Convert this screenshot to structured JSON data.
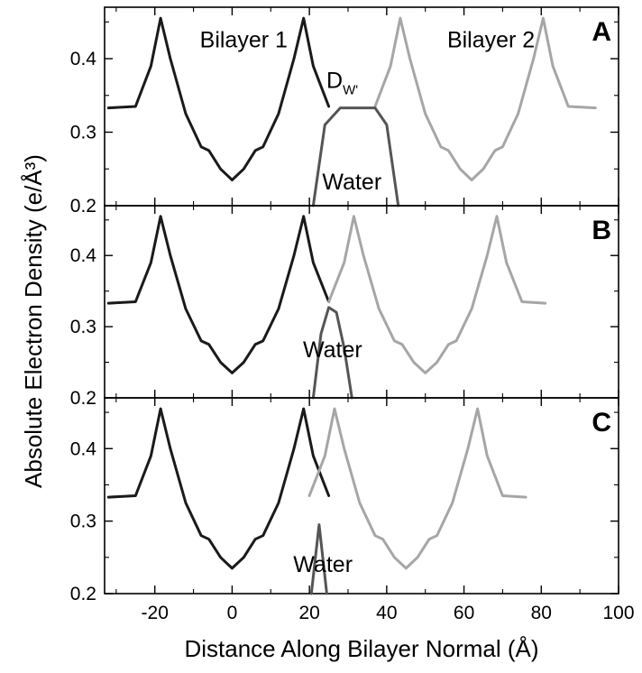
{
  "chart_data": {
    "type": "line",
    "xlabel": "Distance Along Bilayer Normal (Å)",
    "ylabel": "Absolute Electron Density (e/Å³)",
    "xlim": [
      -33,
      100
    ],
    "ylim": [
      0.2,
      0.47
    ],
    "x_ticks": [
      "-20",
      "0",
      "20",
      "40",
      "60",
      "80",
      "100"
    ],
    "y_ticks": [
      "0.2",
      "0.3",
      "0.4"
    ],
    "colors": {
      "bilayer1": "#1a1a1a",
      "bilayer2": "#a6a6a6",
      "water": "#555555"
    },
    "panels": [
      {
        "letter": "A",
        "annotations": [
          {
            "text": "Bilayer 1",
            "x": 3,
            "y": 0.425
          },
          {
            "text": "Bilayer 2",
            "x": 67,
            "y": 0.425
          },
          {
            "text": "D",
            "sub": "W'",
            "x": 28.5,
            "y": 0.37
          },
          {
            "text": "Water",
            "x": 31,
            "y": 0.232
          }
        ],
        "series": [
          {
            "role": "bilayer1",
            "x": [
              -32,
              -25,
              -21,
              -18.5,
              -16,
              -12,
              -8,
              -6,
              -3,
              0,
              3,
              6,
              8,
              12,
              16,
              18.5,
              21,
              25
            ],
            "y": [
              0.333,
              0.335,
              0.39,
              0.455,
              0.4,
              0.325,
              0.28,
              0.275,
              0.25,
              0.235,
              0.25,
              0.275,
              0.28,
              0.325,
              0.4,
              0.455,
              0.39,
              0.335
            ]
          },
          {
            "role": "bilayer2",
            "x": [
              37,
              41,
              43.5,
              46,
              50,
              54,
              56,
              59,
              62,
              65,
              68,
              70,
              74,
              78,
              80.5,
              83,
              87,
              94
            ],
            "y": [
              0.335,
              0.39,
              0.455,
              0.4,
              0.325,
              0.28,
              0.275,
              0.25,
              0.235,
              0.25,
              0.275,
              0.28,
              0.325,
              0.4,
              0.455,
              0.39,
              0.335,
              0.333
            ]
          },
          {
            "role": "water",
            "x": [
              21,
              24,
              28,
              31,
              34,
              37,
              40,
              43
            ],
            "y": [
              0.2,
              0.31,
              0.333,
              0.333,
              0.333,
              0.333,
              0.31,
              0.2
            ]
          }
        ]
      },
      {
        "letter": "B",
        "annotations": [
          {
            "text": "Water",
            "x": 26,
            "y": 0.267
          }
        ],
        "series": [
          {
            "role": "bilayer1",
            "x": [
              -32,
              -25,
              -21,
              -18.5,
              -16,
              -12,
              -8,
              -6,
              -3,
              0,
              3,
              6,
              8,
              12,
              16,
              18.5,
              21,
              25
            ],
            "y": [
              0.333,
              0.335,
              0.39,
              0.455,
              0.4,
              0.325,
              0.28,
              0.275,
              0.25,
              0.235,
              0.25,
              0.275,
              0.28,
              0.325,
              0.4,
              0.455,
              0.39,
              0.335
            ]
          },
          {
            "role": "bilayer2",
            "x": [
              25,
              29,
              31.5,
              34,
              38,
              42,
              44,
              47,
              50,
              53,
              56,
              58,
              62,
              66,
              68.5,
              71,
              75,
              81
            ],
            "y": [
              0.335,
              0.39,
              0.455,
              0.4,
              0.325,
              0.28,
              0.275,
              0.25,
              0.235,
              0.25,
              0.275,
              0.28,
              0.325,
              0.4,
              0.455,
              0.39,
              0.335,
              0.333
            ]
          },
          {
            "role": "water",
            "x": [
              21,
              23,
              25,
              27,
              29,
              31
            ],
            "y": [
              0.2,
              0.29,
              0.327,
              0.32,
              0.27,
              0.2
            ]
          }
        ]
      },
      {
        "letter": "C",
        "annotations": [
          {
            "text": "Water",
            "x": 23.5,
            "y": 0.24
          }
        ],
        "series": [
          {
            "role": "bilayer1",
            "x": [
              -32,
              -25,
              -21,
              -18.5,
              -16,
              -12,
              -8,
              -6,
              -3,
              0,
              3,
              6,
              8,
              12,
              16,
              18.5,
              21,
              25
            ],
            "y": [
              0.333,
              0.335,
              0.39,
              0.455,
              0.4,
              0.325,
              0.28,
              0.275,
              0.25,
              0.235,
              0.25,
              0.275,
              0.28,
              0.325,
              0.4,
              0.455,
              0.39,
              0.335
            ]
          },
          {
            "role": "bilayer2",
            "x": [
              20,
              24,
              26.5,
              29,
              33,
              37,
              39,
              42,
              45,
              48,
              51,
              53,
              57,
              61,
              63.5,
              66,
              70,
              76
            ],
            "y": [
              0.335,
              0.39,
              0.455,
              0.4,
              0.325,
              0.28,
              0.275,
              0.25,
              0.235,
              0.25,
              0.275,
              0.28,
              0.325,
              0.4,
              0.455,
              0.39,
              0.335,
              0.333
            ]
          },
          {
            "role": "water",
            "x": [
              20.5,
              22.5,
              24.5
            ],
            "y": [
              0.2,
              0.295,
              0.2
            ]
          }
        ]
      }
    ]
  }
}
